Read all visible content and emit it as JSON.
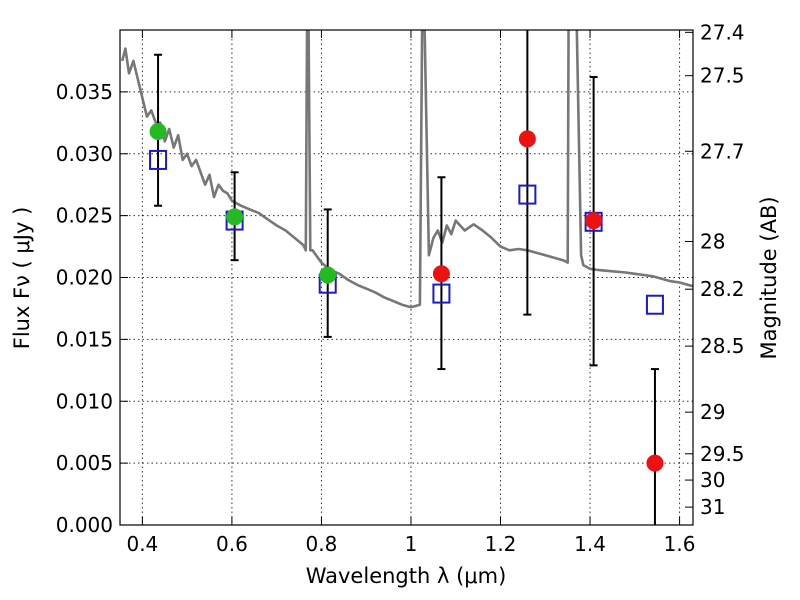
{
  "chart_data": {
    "type": "scatter",
    "title": "",
    "xlabel": "Wavelength  λ (μm)",
    "ylabel": "Flux  Fν  ( μJy )",
    "y2label": "Magnitude (AB)",
    "xlim": [
      0.35,
      1.63
    ],
    "ylim": [
      0.0,
      0.04
    ],
    "grid": true,
    "x_ticks": [
      {
        "v": 0.4,
        "label": "0.4"
      },
      {
        "v": 0.6,
        "label": "0.6"
      },
      {
        "v": 0.8,
        "label": "0.8"
      },
      {
        "v": 1.0,
        "label": "1"
      },
      {
        "v": 1.2,
        "label": "1.2"
      },
      {
        "v": 1.4,
        "label": "1.4"
      },
      {
        "v": 1.6,
        "label": "1.6"
      }
    ],
    "y_ticks": [
      {
        "v": 0.0,
        "label": "0.000"
      },
      {
        "v": 0.005,
        "label": "0.005"
      },
      {
        "v": 0.01,
        "label": "0.010"
      },
      {
        "v": 0.015,
        "label": "0.015"
      },
      {
        "v": 0.02,
        "label": "0.020"
      },
      {
        "v": 0.025,
        "label": "0.025"
      },
      {
        "v": 0.03,
        "label": "0.030"
      },
      {
        "v": 0.035,
        "label": "0.035"
      }
    ],
    "y2_ticks": [
      {
        "v": 27.4,
        "label": "27.4"
      },
      {
        "v": 27.5,
        "label": "27.5"
      },
      {
        "v": 27.7,
        "label": "27.7"
      },
      {
        "v": 28.0,
        "label": "28"
      },
      {
        "v": 28.2,
        "label": "28.2"
      },
      {
        "v": 28.5,
        "label": "28.5"
      },
      {
        "v": 29.0,
        "label": "29"
      },
      {
        "v": 29.5,
        "label": "29.5"
      },
      {
        "v": 30.0,
        "label": "30"
      },
      {
        "v": 31.0,
        "label": "31"
      }
    ],
    "colors": {
      "sed": "#777777",
      "green": "#22bb22",
      "red": "#ee1111",
      "model": "#1a1acc",
      "errorbar": "#000000"
    },
    "sed_model": {
      "x": [
        0.355,
        0.362,
        0.37,
        0.38,
        0.39,
        0.4,
        0.41,
        0.42,
        0.43,
        0.44,
        0.45,
        0.46,
        0.47,
        0.48,
        0.49,
        0.5,
        0.51,
        0.52,
        0.53,
        0.54,
        0.55,
        0.56,
        0.57,
        0.58,
        0.59,
        0.6,
        0.62,
        0.64,
        0.66,
        0.68,
        0.7,
        0.72,
        0.74,
        0.76,
        0.765,
        0.768,
        0.771,
        0.775,
        0.78,
        0.8,
        0.82,
        0.84,
        0.86,
        0.88,
        0.9,
        0.92,
        0.94,
        0.96,
        0.98,
        1.0,
        1.02,
        1.025,
        1.03,
        1.04,
        1.05,
        1.06,
        1.07,
        1.08,
        1.09,
        1.1,
        1.12,
        1.14,
        1.16,
        1.18,
        1.2,
        1.22,
        1.24,
        1.26,
        1.28,
        1.3,
        1.32,
        1.34,
        1.35,
        1.352,
        1.354,
        1.37,
        1.38,
        1.385,
        1.39,
        1.395,
        1.4,
        1.42,
        1.45,
        1.48,
        1.5,
        1.52,
        1.54,
        1.56,
        1.58,
        1.6,
        1.63
      ],
      "y": [
        0.0375,
        0.0385,
        0.0365,
        0.0375,
        0.036,
        0.0345,
        0.033,
        0.0335,
        0.0325,
        0.0325,
        0.031,
        0.032,
        0.0305,
        0.0315,
        0.0295,
        0.03,
        0.029,
        0.0295,
        0.0285,
        0.0275,
        0.0283,
        0.0265,
        0.0275,
        0.027,
        0.0268,
        0.0262,
        0.0258,
        0.0255,
        0.0252,
        0.0247,
        0.0242,
        0.0238,
        0.0232,
        0.0226,
        0.0222,
        0.041,
        0.041,
        0.0222,
        0.0222,
        0.0212,
        0.0206,
        0.0203,
        0.0198,
        0.0194,
        0.0191,
        0.0188,
        0.0184,
        0.0181,
        0.0178,
        0.0176,
        0.0178,
        0.041,
        0.041,
        0.0218,
        0.0232,
        0.0238,
        0.0228,
        0.0242,
        0.0235,
        0.0246,
        0.0238,
        0.0243,
        0.0238,
        0.0232,
        0.0225,
        0.0222,
        0.0223,
        0.0222,
        0.022,
        0.0218,
        0.0216,
        0.0214,
        0.0212,
        0.041,
        0.041,
        0.041,
        0.0218,
        0.021,
        0.0209,
        0.0208,
        0.0207,
        0.0206,
        0.0205,
        0.0204,
        0.0203,
        0.0202,
        0.0201,
        0.0199,
        0.0197,
        0.0196,
        0.0193
      ]
    },
    "series": [
      {
        "marker": "circle",
        "color": "#22bb22",
        "points": [
          {
            "x": 0.435,
            "y": 0.0318,
            "err_lo": 0.0258,
            "err_hi": 0.038
          },
          {
            "x": 0.606,
            "y": 0.0249,
            "err_lo": 0.0214,
            "err_hi": 0.0285
          },
          {
            "x": 0.814,
            "y": 0.0202,
            "err_lo": 0.0152,
            "err_hi": 0.0255
          }
        ]
      },
      {
        "marker": "circle",
        "color": "#ee1111",
        "points": [
          {
            "x": 1.068,
            "y": 0.0203,
            "err_lo": 0.0126,
            "err_hi": 0.0281
          },
          {
            "x": 1.26,
            "y": 0.0312,
            "err_lo": 0.017,
            "err_hi": 0.04
          },
          {
            "x": 1.408,
            "y": 0.0246,
            "err_lo": 0.0129,
            "err_hi": 0.0362
          },
          {
            "x": 1.545,
            "y": 0.005,
            "err_lo": 0.0,
            "err_hi": 0.0126
          }
        ]
      },
      {
        "marker": "square",
        "color": "#1a1acc",
        "points": [
          {
            "x": 0.435,
            "y": 0.0295
          },
          {
            "x": 0.606,
            "y": 0.0246
          },
          {
            "x": 0.814,
            "y": 0.0195
          },
          {
            "x": 1.068,
            "y": 0.0187
          },
          {
            "x": 1.26,
            "y": 0.0267
          },
          {
            "x": 1.408,
            "y": 0.0245
          },
          {
            "x": 1.545,
            "y": 0.0178
          }
        ]
      }
    ]
  }
}
